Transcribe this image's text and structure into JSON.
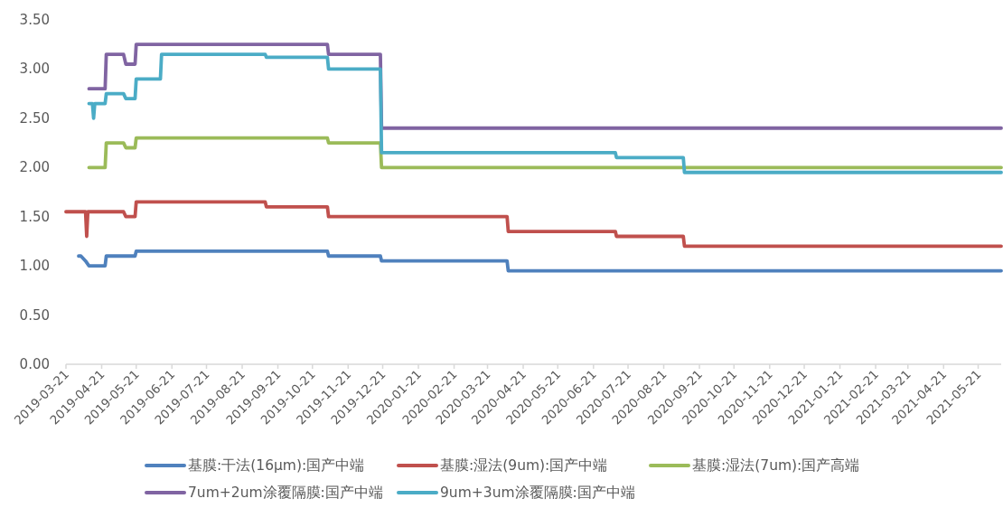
{
  "chart_data": {
    "type": "line",
    "xlim": [
      "2019-03-21",
      "2021-06-10"
    ],
    "ylim": [
      0,
      3.5
    ],
    "xticks": [
      "2019-03-21",
      "2019-04-21",
      "2019-05-21",
      "2019-06-21",
      "2019-07-21",
      "2019-08-21",
      "2019-09-21",
      "2019-10-21",
      "2019-11-21",
      "2019-12-21",
      "2020-01-21",
      "2020-02-21",
      "2020-03-21",
      "2020-04-21",
      "2020-05-21",
      "2020-06-21",
      "2020-07-21",
      "2020-08-21",
      "2020-09-21",
      "2020-10-21",
      "2020-11-21",
      "2020-12-21",
      "2021-01-21",
      "2021-02-21",
      "2021-03-21",
      "2021-04-21",
      "2021-05-21"
    ],
    "yticks": [
      {
        "value": 0,
        "label": "0.00"
      },
      {
        "value": 0.5,
        "label": "0.50"
      },
      {
        "value": 1,
        "label": "1.00"
      },
      {
        "value": 1.5,
        "label": "1.50"
      },
      {
        "value": 2,
        "label": "2.00"
      },
      {
        "value": 2.5,
        "label": "2.50"
      },
      {
        "value": 3,
        "label": "3.00"
      },
      {
        "value": 3.5,
        "label": "3.50"
      }
    ],
    "grid": false,
    "legend": "bottom",
    "marker": "none",
    "line_style": "solid",
    "series": [
      {
        "name": "基膜:干法(16μm):国产中端",
        "color": "#4f81bd",
        "x": [
          "2019-04-01",
          "2019-04-03",
          "2019-04-07",
          "2019-04-10",
          "2019-04-24",
          "2019-04-25",
          "2019-05-20",
          "2019-05-21",
          "2019-11-03",
          "2019-11-04",
          "2019-12-19",
          "2019-12-20",
          "2020-04-07",
          "2020-04-08",
          "2021-06-10"
        ],
        "values": [
          1.1,
          1.1,
          1.05,
          1.0,
          1.0,
          1.1,
          1.1,
          1.15,
          1.15,
          1.1,
          1.1,
          1.05,
          1.05,
          0.95,
          0.95
        ]
      },
      {
        "name": "基膜:湿法(9um):国产中端",
        "color": "#c0504d",
        "x": [
          "2019-03-21",
          "2019-04-07",
          "2019-04-08",
          "2019-04-09",
          "2019-05-10",
          "2019-05-12",
          "2019-05-20",
          "2019-05-21",
          "2019-09-10",
          "2019-09-11",
          "2019-11-03",
          "2019-11-04",
          "2020-04-07",
          "2020-04-08",
          "2020-07-10",
          "2020-07-11",
          "2020-09-07",
          "2020-09-08",
          "2021-06-10"
        ],
        "values": [
          1.55,
          1.55,
          1.3,
          1.55,
          1.55,
          1.5,
          1.5,
          1.65,
          1.65,
          1.6,
          1.6,
          1.5,
          1.5,
          1.35,
          1.35,
          1.3,
          1.3,
          1.2,
          1.2
        ]
      },
      {
        "name": "基膜:湿法(7um):国产高端",
        "color": "#9bbb59",
        "x": [
          "2019-04-10",
          "2019-04-24",
          "2019-04-25",
          "2019-05-10",
          "2019-05-12",
          "2019-05-20",
          "2019-05-21",
          "2019-11-03",
          "2019-11-04",
          "2019-12-19",
          "2019-12-20",
          "2021-06-10"
        ],
        "values": [
          2.0,
          2.0,
          2.25,
          2.25,
          2.2,
          2.2,
          2.3,
          2.3,
          2.25,
          2.25,
          2.0,
          2.0
        ]
      },
      {
        "name": "7um+2um涂覆隔膜:国产中端",
        "color": "#8064a2",
        "x": [
          "2019-04-10",
          "2019-04-24",
          "2019-04-25",
          "2019-05-10",
          "2019-05-12",
          "2019-05-20",
          "2019-05-21",
          "2019-11-03",
          "2019-11-04",
          "2019-12-19",
          "2019-12-20",
          "2021-06-10"
        ],
        "values": [
          2.8,
          2.8,
          3.15,
          3.15,
          3.05,
          3.05,
          3.25,
          3.25,
          3.15,
          3.15,
          2.4,
          2.4
        ]
      },
      {
        "name": "9um+3um涂覆隔膜:国产中端",
        "color": "#4bacc6",
        "x": [
          "2019-04-10",
          "2019-04-13",
          "2019-04-14",
          "2019-04-15",
          "2019-04-24",
          "2019-04-25",
          "2019-05-10",
          "2019-05-12",
          "2019-05-20",
          "2019-05-21",
          "2019-06-11",
          "2019-06-12",
          "2019-09-10",
          "2019-09-11",
          "2019-11-03",
          "2019-11-04",
          "2019-12-19",
          "2019-12-20",
          "2020-07-10",
          "2020-07-11",
          "2020-09-07",
          "2020-09-08",
          "2021-06-10"
        ],
        "values": [
          2.65,
          2.65,
          2.5,
          2.65,
          2.65,
          2.75,
          2.75,
          2.7,
          2.7,
          2.9,
          2.9,
          3.15,
          3.15,
          3.12,
          3.12,
          3.0,
          3.0,
          2.15,
          2.15,
          2.1,
          2.1,
          1.95,
          1.95
        ]
      }
    ]
  }
}
